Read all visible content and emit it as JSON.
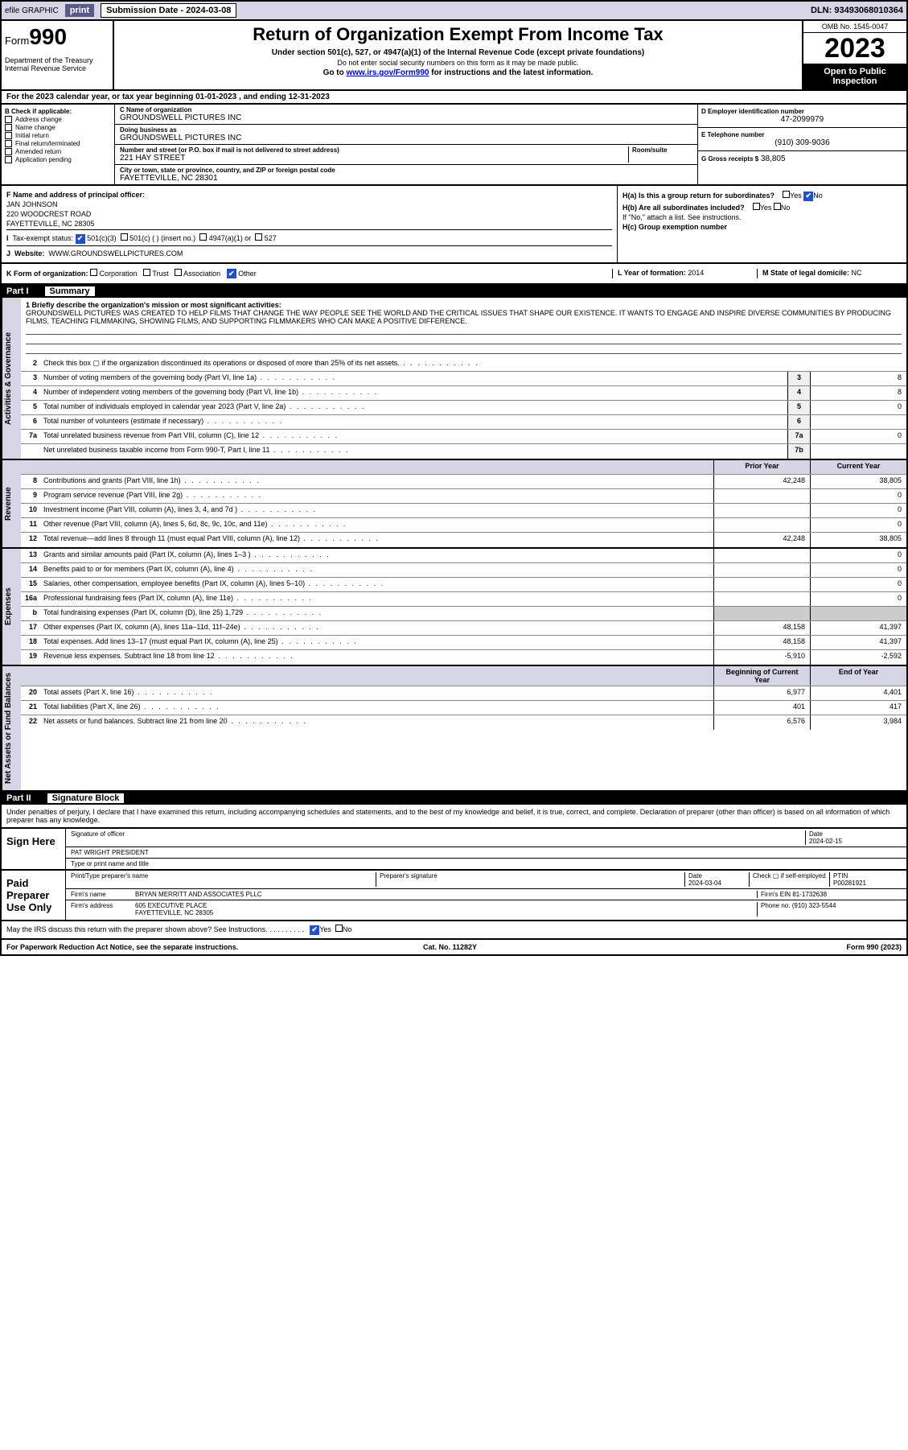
{
  "topbar": {
    "efile": "efile GRAPHIC",
    "print": "print",
    "subdate_label": "Submission Date - 2024-03-08",
    "dln": "DLN: 93493068010364"
  },
  "header": {
    "form_prefix": "Form",
    "form_num": "990",
    "dept": "Department of the Treasury\nInternal Revenue Service",
    "title": "Return of Organization Exempt From Income Tax",
    "sub1": "Under section 501(c), 527, or 4947(a)(1) of the Internal Revenue Code (except private foundations)",
    "sub2": "Do not enter social security numbers on this form as it may be made public.",
    "goto": "Go to www.irs.gov/Form990 for instructions and the latest information.",
    "goto_url": "www.irs.gov/Form990",
    "omb": "OMB No. 1545-0047",
    "year": "2023",
    "inspect": "Open to Public Inspection"
  },
  "taxyear": "For the 2023 calendar year, or tax year beginning 01-01-2023   , and ending 12-31-2023",
  "b": {
    "label": "B Check if applicable:",
    "opts": [
      "Address change",
      "Name change",
      "Initial return",
      "Final return/terminated",
      "Amended return",
      "Application pending"
    ]
  },
  "c": {
    "name_lbl": "C Name of organization",
    "name": "GROUNDSWELL PICTURES INC",
    "dba_lbl": "Doing business as",
    "dba": "GROUNDSWELL PICTURES INC",
    "street_lbl": "Number and street (or P.O. box if mail is not delivered to street address)",
    "room_lbl": "Room/suite",
    "street": "221 HAY STREET",
    "city_lbl": "City or town, state or province, country, and ZIP or foreign postal code",
    "city": "FAYETTEVILLE, NC  28301"
  },
  "d": {
    "lbl": "D Employer identification number",
    "val": "47-2099979"
  },
  "e": {
    "lbl": "E Telephone number",
    "val": "(910) 309-9036"
  },
  "g": {
    "lbl": "G Gross receipts $",
    "val": "38,805"
  },
  "f": {
    "lbl": "F  Name and address of principal officer:",
    "name": "JAN JOHNSON",
    "addr1": "220 WOODCREST ROAD",
    "addr2": "FAYETTEVILLE, NC  28305"
  },
  "h": {
    "a": "H(a)  Is this a group return for subordinates?",
    "b": "H(b)  Are all subordinates included?",
    "note": "If \"No,\" attach a list. See instructions.",
    "c": "H(c)  Group exemption number",
    "yes": "Yes",
    "no": "No"
  },
  "i": {
    "lbl": "Tax-exempt status:",
    "o1": "501(c)(3)",
    "o2": "501(c) (  ) (insert no.)",
    "o3": "4947(a)(1) or",
    "o4": "527"
  },
  "j": {
    "lbl": "Website:",
    "val": "WWW.GROUNDSWELLPICTURES.COM"
  },
  "k": {
    "lbl": "K Form of organization:",
    "opts": [
      "Corporation",
      "Trust",
      "Association",
      "Other"
    ]
  },
  "l": {
    "lbl": "L Year of formation:",
    "val": "2014"
  },
  "m": {
    "lbl": "M State of legal domicile:",
    "val": "NC"
  },
  "part1": {
    "num": "Part I",
    "title": "Summary"
  },
  "mission_lbl": "1  Briefly describe the organization's mission or most significant activities:",
  "mission": "GROUNDSWELL PICTURES WAS CREATED TO HELP FILMS THAT CHANGE THE WAY PEOPLE SEE THE WORLD AND THE CRITICAL ISSUES THAT SHAPE OUR EXISTENCE. IT WANTS TO ENGAGE AND INSPIRE DIVERSE COMMUNITIES BY PRODUCING FILMS, TEACHING FILMMAKING, SHOWING FILMS, AND SUPPORTING FILMMAKERS WHO CAN MAKE A POSITIVE DIFFERENCE.",
  "tabs": {
    "gov": "Activities & Governance",
    "rev": "Revenue",
    "exp": "Expenses",
    "net": "Net Assets or Fund Balances"
  },
  "gov_rows": [
    {
      "n": "2",
      "t": "Check this box ▢ if the organization discontinued its operations or disposed of more than 25% of its net assets."
    },
    {
      "n": "3",
      "t": "Number of voting members of the governing body (Part VI, line 1a)",
      "box": "3",
      "v": "8"
    },
    {
      "n": "4",
      "t": "Number of independent voting members of the governing body (Part VI, line 1b)",
      "box": "4",
      "v": "8"
    },
    {
      "n": "5",
      "t": "Total number of individuals employed in calendar year 2023 (Part V, line 2a)",
      "box": "5",
      "v": "0"
    },
    {
      "n": "6",
      "t": "Total number of volunteers (estimate if necessary)",
      "box": "6",
      "v": ""
    },
    {
      "n": "7a",
      "t": "Total unrelated business revenue from Part VIII, column (C), line 12",
      "box": "7a",
      "v": "0"
    },
    {
      "n": "",
      "t": "Net unrelated business taxable income from Form 990-T, Part I, line 11",
      "box": "7b",
      "v": ""
    }
  ],
  "two_hdr": {
    "prior": "Prior Year",
    "curr": "Current Year"
  },
  "rev_rows": [
    {
      "n": "8",
      "t": "Contributions and grants (Part VIII, line 1h)",
      "p": "42,248",
      "c": "38,805"
    },
    {
      "n": "9",
      "t": "Program service revenue (Part VIII, line 2g)",
      "p": "",
      "c": "0"
    },
    {
      "n": "10",
      "t": "Investment income (Part VIII, column (A), lines 3, 4, and 7d )",
      "p": "",
      "c": "0"
    },
    {
      "n": "11",
      "t": "Other revenue (Part VIII, column (A), lines 5, 6d, 8c, 9c, 10c, and 11e)",
      "p": "",
      "c": "0"
    },
    {
      "n": "12",
      "t": "Total revenue—add lines 8 through 11 (must equal Part VIII, column (A), line 12)",
      "p": "42,248",
      "c": "38,805"
    }
  ],
  "exp_rows": [
    {
      "n": "13",
      "t": "Grants and similar amounts paid (Part IX, column (A), lines 1–3 )",
      "p": "",
      "c": "0"
    },
    {
      "n": "14",
      "t": "Benefits paid to or for members (Part IX, column (A), line 4)",
      "p": "",
      "c": "0"
    },
    {
      "n": "15",
      "t": "Salaries, other compensation, employee benefits (Part IX, column (A), lines 5–10)",
      "p": "",
      "c": "0"
    },
    {
      "n": "16a",
      "t": "Professional fundraising fees (Part IX, column (A), line 11e)",
      "p": "",
      "c": "0"
    },
    {
      "n": "b",
      "t": "Total fundraising expenses (Part IX, column (D), line 25) 1,729",
      "p": "—",
      "c": "—"
    },
    {
      "n": "17",
      "t": "Other expenses (Part IX, column (A), lines 11a–11d, 11f–24e)",
      "p": "48,158",
      "c": "41,397"
    },
    {
      "n": "18",
      "t": "Total expenses. Add lines 13–17 (must equal Part IX, column (A), line 25)",
      "p": "48,158",
      "c": "41,397"
    },
    {
      "n": "19",
      "t": "Revenue less expenses. Subtract line 18 from line 12",
      "p": "-5,910",
      "c": "-2,592"
    }
  ],
  "net_hdr": {
    "beg": "Beginning of Current Year",
    "end": "End of Year"
  },
  "net_rows": [
    {
      "n": "20",
      "t": "Total assets (Part X, line 16)",
      "p": "6,977",
      "c": "4,401"
    },
    {
      "n": "21",
      "t": "Total liabilities (Part X, line 26)",
      "p": "401",
      "c": "417"
    },
    {
      "n": "22",
      "t": "Net assets or fund balances. Subtract line 21 from line 20",
      "p": "6,576",
      "c": "3,984"
    }
  ],
  "part2": {
    "num": "Part II",
    "title": "Signature Block"
  },
  "perjury": "Under penalties of perjury, I declare that I have examined this return, including accompanying schedules and statements, and to the best of my knowledge and belief, it is true, correct, and complete. Declaration of preparer (other than officer) is based on all information of which preparer has any knowledge.",
  "sign": {
    "label": "Sign Here",
    "sig_lbl": "Signature of officer",
    "date_lbl": "Date",
    "date": "2024-02-15",
    "name": "PAT WRIGHT PRESIDENT",
    "name_lbl": "Type or print name and title"
  },
  "paid": {
    "label": "Paid Preparer Use Only",
    "h1": "Print/Type preparer's name",
    "h2": "Preparer's signature",
    "h3": "Date",
    "date": "2024-03-04",
    "h4": "Check ▢ if self-employed",
    "h5": "PTIN",
    "ptin": "P00281921",
    "firm_lbl": "Firm's name",
    "firm": "BRYAN MERRITT AND ASSOCIATES PLLC",
    "ein_lbl": "Firm's EIN",
    "ein": "81-1732638",
    "addr_lbl": "Firm's address",
    "addr": "605 EXECUTIVE PLACE\nFAYETTEVILLE, NC  28305",
    "phone_lbl": "Phone no.",
    "phone": "(910) 323-5544"
  },
  "discuss": "May the IRS discuss this return with the preparer shown above? See Instructions.",
  "footer": {
    "left": "For Paperwork Reduction Act Notice, see the separate instructions.",
    "mid": "Cat. No. 11282Y",
    "right": "Form 990 (2023)"
  }
}
